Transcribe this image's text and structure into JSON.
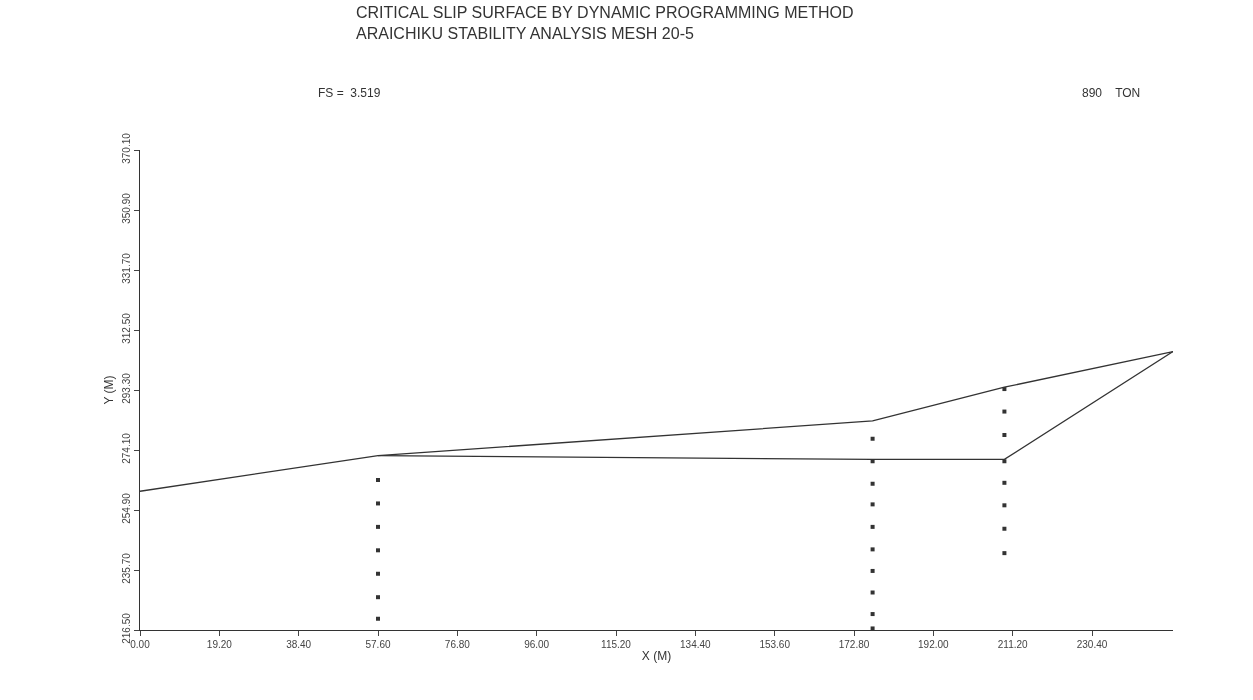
{
  "chart_data": {
    "type": "line",
    "title": "CRITICAL SLIP SURFACE BY DYNAMIC PROGRAMMING METHOD",
    "subtitle": "ARAICHIKU STABILITY ANALYSIS MESH 20-5",
    "xlabel": "X (M)",
    "ylabel": "Y (M)",
    "annotations": [
      "FS =  3.519",
      "890    TON"
    ],
    "xlim": [
      0,
      250
    ],
    "xticks": [
      {
        "value": 0,
        "label": "0.00"
      },
      {
        "value": 19.2,
        "label": "19.20"
      },
      {
        "value": 38.4,
        "label": "38.40"
      },
      {
        "value": 57.6,
        "label": "57.60"
      },
      {
        "value": 76.8,
        "label": "76.80"
      },
      {
        "value": 96,
        "label": "96.00"
      },
      {
        "value": 115.2,
        "label": "115.20"
      },
      {
        "value": 134.4,
        "label": "134.40"
      },
      {
        "value": 153.6,
        "label": "153.60"
      },
      {
        "value": 172.8,
        "label": "172.80"
      },
      {
        "value": 192,
        "label": "192.00"
      },
      {
        "value": 211.2,
        "label": "211.20"
      },
      {
        "value": 230.4,
        "label": "230.40"
      }
    ],
    "ylim": [
      216.5,
      370.1
    ],
    "yticks": [
      {
        "value": 216.5,
        "label": "216.50"
      },
      {
        "value": 235.7,
        "label": "235.70"
      },
      {
        "value": 254.9,
        "label": "254.90"
      },
      {
        "value": 274.1,
        "label": "274.10"
      },
      {
        "value": 293.3,
        "label": "293.30"
      },
      {
        "value": 312.5,
        "label": "312.50"
      },
      {
        "value": 331.7,
        "label": "331.70"
      },
      {
        "value": 350.9,
        "label": "350.90"
      },
      {
        "value": 370.1,
        "label": "370.10"
      }
    ],
    "series": [
      {
        "color": "#333333",
        "x": [
          0,
          57.6,
          177.3,
          209.2,
          250
        ],
        "values": [
          260.9,
          272.3,
          283.4,
          294.2,
          305.6
        ],
        "marker": "none"
      },
      {
        "color": "#333333",
        "x": [
          57.6,
          177.3,
          209.2,
          250
        ],
        "values": [
          272.3,
          271.1,
          271.1,
          305.6
        ],
        "marker": "none"
      },
      {
        "type": "scatter",
        "color": "#333333",
        "marker": "square",
        "x": [
          57.6,
          57.6,
          57.6,
          57.6,
          57.6,
          57.6,
          57.6,
          177.3,
          177.3,
          177.3,
          177.3,
          177.3,
          177.3,
          177.3,
          177.3,
          177.3,
          177.3,
          209.2,
          209.2,
          209.2,
          209.2,
          209.2,
          209.2,
          209.2,
          209.2
        ],
        "values": [
          264.5,
          257,
          249.5,
          242,
          234.5,
          227,
          220.1,
          277.7,
          270.5,
          263.3,
          256.7,
          249.5,
          242.3,
          235.4,
          228.5,
          221.6,
          217,
          293.6,
          286.4,
          278.9,
          270.5,
          263.6,
          256.4,
          248.9,
          241.1
        ]
      }
    ]
  }
}
